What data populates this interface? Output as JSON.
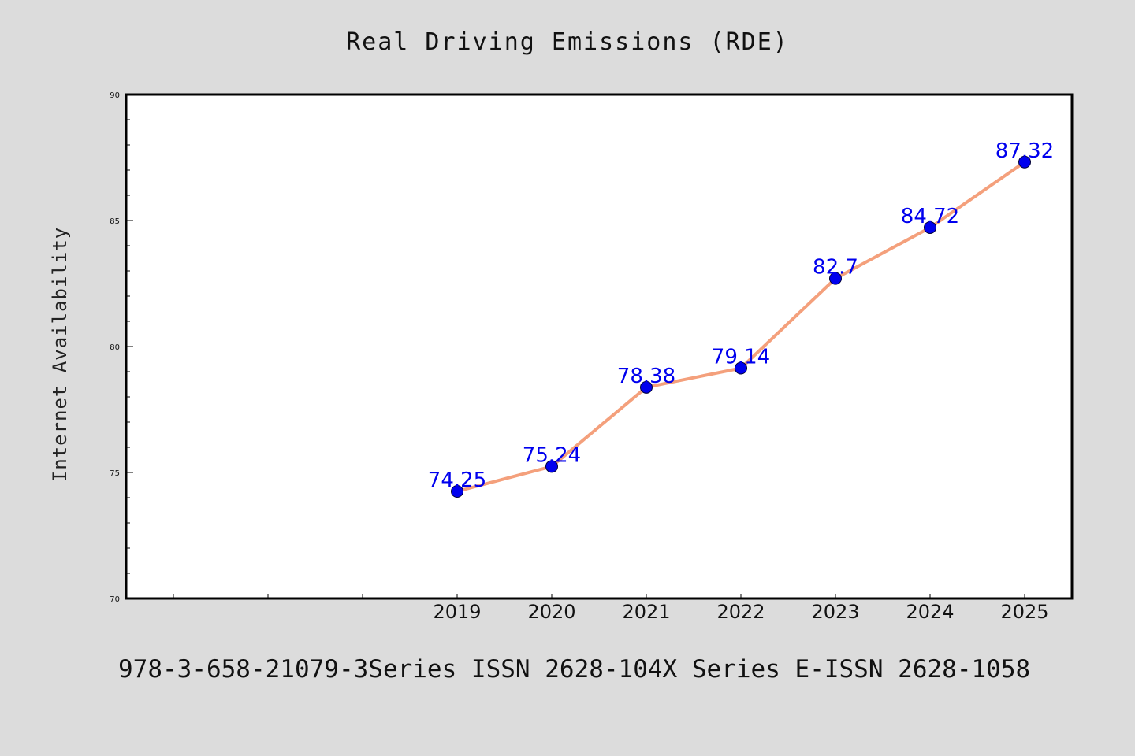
{
  "chart_data": {
    "type": "line",
    "title": "Real Driving Emissions (RDE)",
    "xlabel": "",
    "ylabel": "Internet Availability",
    "x_slots": [
      "",
      "",
      "",
      "2019",
      "2020",
      "2021",
      "2022",
      "2023",
      "2024",
      "2025"
    ],
    "categories": [
      "2019",
      "2020",
      "2021",
      "2022",
      "2023",
      "2024",
      "2025"
    ],
    "series": [
      {
        "values": [
          74.25,
          75.24,
          78.38,
          79.14,
          82.7,
          84.72,
          87.32
        ],
        "labels": [
          "74.25",
          "75.24",
          "78.38",
          "79.14",
          "82.7",
          "84.72",
          "87.32"
        ]
      }
    ],
    "ylim": [
      70,
      90
    ],
    "yticks": [
      70,
      75,
      80,
      85,
      90
    ],
    "ytick_labels": [
      "70",
      "75",
      "80",
      "85",
      "90"
    ],
    "grid": false,
    "legend": "none",
    "colors": {
      "line": "#f4a07c",
      "marker": "#0000ee",
      "label": "#0000ee",
      "plot_bg": "#ffffff",
      "page_bg": "#dcdcdc"
    }
  },
  "footer": {
    "text": "978-3-658-21079-3Series ISSN 2628-104X Series E-ISSN 2628-1058"
  }
}
